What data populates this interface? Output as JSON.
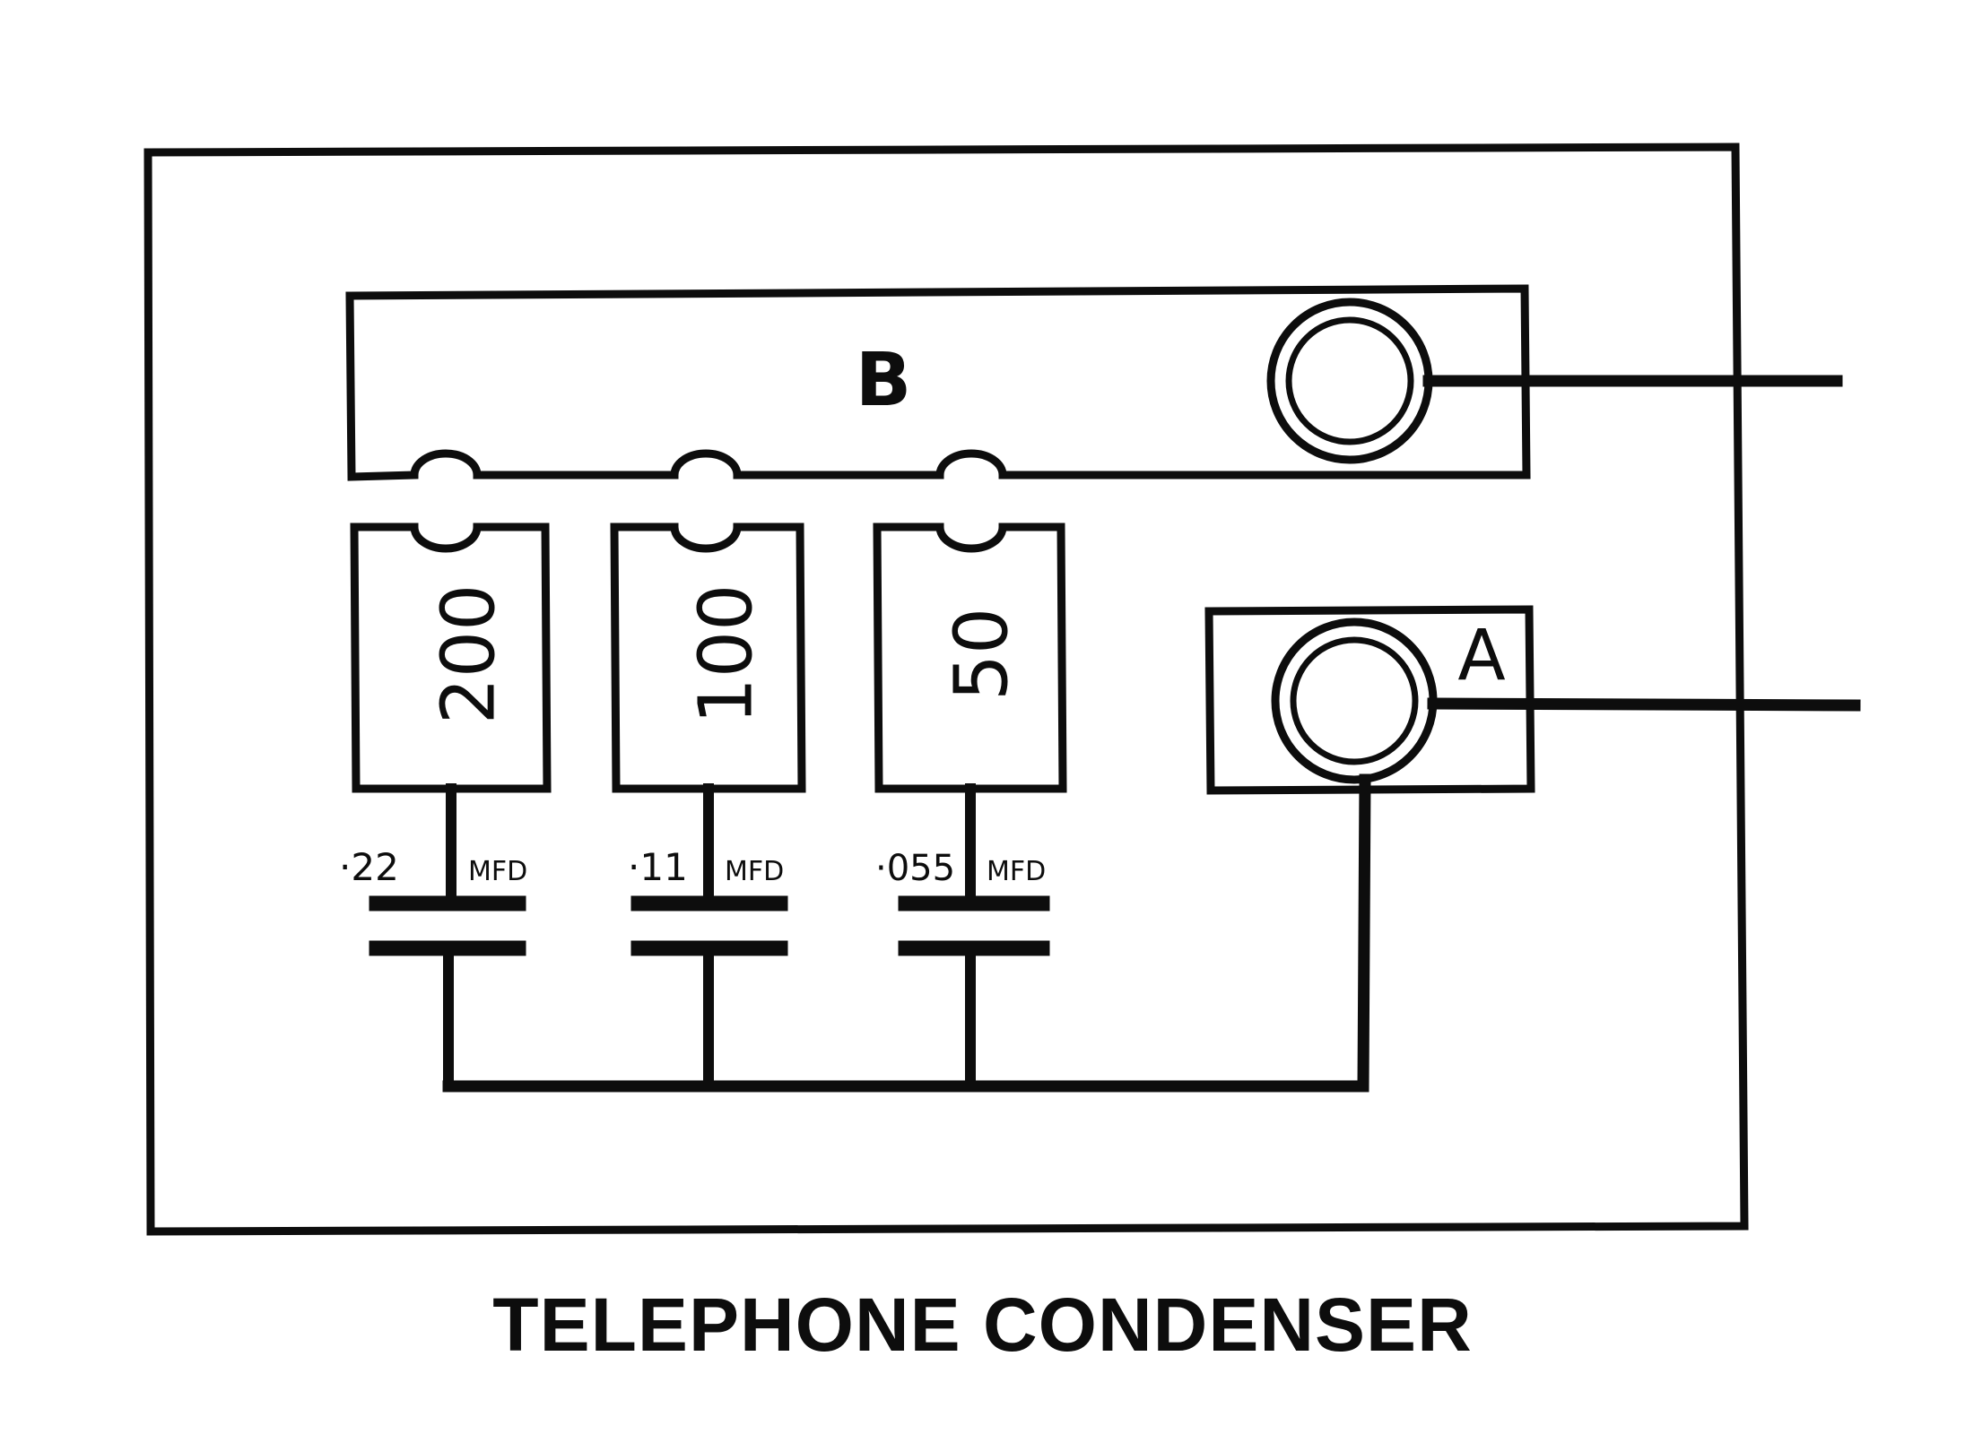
{
  "caption": "TELEPHONE CONDENSER",
  "terminals": {
    "b_label": "B",
    "a_label": "A"
  },
  "switch_blocks": [
    {
      "label": "200",
      "capacitance": "·22",
      "unit": "MFD"
    },
    {
      "label": "100",
      "capacitance": "·11",
      "unit": "MFD"
    },
    {
      "label": "50",
      "capacitance": "·055",
      "unit": "MFD"
    }
  ],
  "colors": {
    "ink": "#0d0d0d",
    "paper": "#ffffff"
  }
}
